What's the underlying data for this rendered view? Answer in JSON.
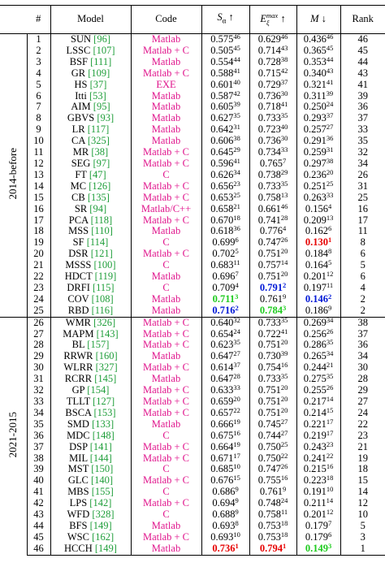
{
  "table": {
    "header": {
      "num": "#",
      "model": "Model",
      "code": "Code",
      "s": "S",
      "s_sub": "α",
      "s_arrow": "↑",
      "e": "E",
      "e_sub": "ξ",
      "e_sup": "max",
      "e_arrow": "↑",
      "m": "M",
      "m_arrow": "↓",
      "rank": "Rank"
    },
    "groups": [
      {
        "label": "2014-before",
        "rows": [
          {
            "num": "1",
            "model": "SUN",
            "ref": "[96]",
            "code": "Matlab",
            "s": "0.575",
            "s_rank": "46",
            "e": "0.629",
            "e_rank": "46",
            "m": "0.436",
            "m_rank": "46",
            "rank": "46"
          },
          {
            "num": "2",
            "model": "LSSC",
            "ref": "[107]",
            "code": "Matlab + C",
            "s": "0.505",
            "s_rank": "45",
            "e": "0.714",
            "e_rank": "43",
            "m": "0.365",
            "m_rank": "45",
            "rank": "45"
          },
          {
            "num": "3",
            "model": "BSF",
            "ref": "[111]",
            "code": "Matlab",
            "s": "0.554",
            "s_rank": "44",
            "e": "0.728",
            "e_rank": "38",
            "m": "0.353",
            "m_rank": "44",
            "rank": "44"
          },
          {
            "num": "4",
            "model": "GR",
            "ref": "[109]",
            "code": "Matlab + C",
            "s": "0.588",
            "s_rank": "41",
            "e": "0.715",
            "e_rank": "42",
            "m": "0.340",
            "m_rank": "43",
            "rank": "43"
          },
          {
            "num": "5",
            "model": "HS",
            "ref": "[37]",
            "code": "EXE",
            "s": "0.601",
            "s_rank": "40",
            "e": "0.729",
            "e_rank": "37",
            "m": "0.321",
            "m_rank": "41",
            "rank": "41"
          },
          {
            "num": "6",
            "model": "Itti",
            "ref": "[53]",
            "code": "Matlab",
            "s": "0.587",
            "s_rank": "42",
            "e": "0.736",
            "e_rank": "30",
            "m": "0.311",
            "m_rank": "39",
            "rank": "39"
          },
          {
            "num": "7",
            "model": "AIM",
            "ref": "[95]",
            "code": "Matlab",
            "s": "0.605",
            "s_rank": "39",
            "e": "0.718",
            "e_rank": "41",
            "m": "0.250",
            "m_rank": "24",
            "rank": "36"
          },
          {
            "num": "8",
            "model": "GBVS",
            "ref": "[93]",
            "code": "Matlab",
            "s": "0.627",
            "s_rank": "35",
            "e": "0.733",
            "e_rank": "35",
            "m": "0.293",
            "m_rank": "37",
            "rank": "37"
          },
          {
            "num": "9",
            "model": "LR",
            "ref": "[117]",
            "code": "Matlab",
            "s": "0.642",
            "s_rank": "31",
            "e": "0.723",
            "e_rank": "40",
            "m": "0.257",
            "m_rank": "27",
            "rank": "33"
          },
          {
            "num": "10",
            "model": "CA",
            "ref": "[325]",
            "code": "Matlab",
            "s": "0.606",
            "s_rank": "38",
            "e": "0.736",
            "e_rank": "30",
            "m": "0.291",
            "m_rank": "36",
            "rank": "35"
          },
          {
            "num": "11",
            "model": "MR",
            "ref": "[38]",
            "code": "Matlab + C",
            "s": "0.645",
            "s_rank": "29",
            "e": "0.734",
            "e_rank": "33",
            "m": "0.259",
            "m_rank": "31",
            "rank": "32"
          },
          {
            "num": "12",
            "model": "SEG",
            "ref": "[97]",
            "code": "Matlab + C",
            "s": "0.596",
            "s_rank": "41",
            "e": "0.765",
            "e_rank": "7",
            "m": "0.297",
            "m_rank": "38",
            "rank": "34"
          },
          {
            "num": "13",
            "model": "FT",
            "ref": "[47]",
            "code": "C",
            "s": "0.626",
            "s_rank": "34",
            "e": "0.738",
            "e_rank": "29",
            "m": "0.236",
            "m_rank": "20",
            "rank": "26"
          },
          {
            "num": "14",
            "model": "MC",
            "ref": "[126]",
            "code": "Matlab + C",
            "s": "0.656",
            "s_rank": "23",
            "e": "0.733",
            "e_rank": "35",
            "m": "0.251",
            "m_rank": "25",
            "rank": "31"
          },
          {
            "num": "15",
            "model": "CB",
            "ref": "[135]",
            "code": "Matlab + C",
            "s": "0.653",
            "s_rank": "25",
            "e": "0.758",
            "e_rank": "13",
            "m": "0.263",
            "m_rank": "33",
            "rank": "25"
          },
          {
            "num": "16",
            "model": "SR",
            "ref": "[94]",
            "code": "Matlab/C++",
            "s": "0.658",
            "s_rank": "21",
            "e": "0.661",
            "e_rank": "46",
            "m": "0.156",
            "m_rank": "4",
            "rank": "16"
          },
          {
            "num": "17",
            "model": "PCA",
            "ref": "[118]",
            "code": "Matlab + C",
            "s": "0.670",
            "s_rank": "18",
            "e": "0.741",
            "e_rank": "28",
            "m": "0.209",
            "m_rank": "13",
            "rank": "17"
          },
          {
            "num": "18",
            "model": "MSS",
            "ref": "[110]",
            "code": "Matlab",
            "s": "0.618",
            "s_rank": "36",
            "e": "0.776",
            "e_rank": "4",
            "m": "0.162",
            "m_rank": "6",
            "rank": "11"
          },
          {
            "num": "19",
            "model": "SF",
            "ref": "[114]",
            "code": "C",
            "s": "0.699",
            "s_rank": "6",
            "e": "0.747",
            "e_rank": "26",
            "m": "0.130",
            "m_rank": "1",
            "m_color": "red",
            "rank": "8"
          },
          {
            "num": "20",
            "model": "DSR",
            "ref": "[121]",
            "code": "Matlab + C",
            "s": "0.702",
            "s_rank": "5",
            "e": "0.751",
            "e_rank": "20",
            "m": "0.184",
            "m_rank": "8",
            "rank": "6"
          },
          {
            "num": "21",
            "model": "MSSS",
            "ref": "[100]",
            "code": "C",
            "s": "0.683",
            "s_rank": "11",
            "e": "0.757",
            "e_rank": "14",
            "m": "0.164",
            "m_rank": "5",
            "rank": "5"
          },
          {
            "num": "22",
            "model": "HDCT",
            "ref": "[119]",
            "code": "Matlab",
            "s": "0.696",
            "s_rank": "7",
            "e": "0.751",
            "e_rank": "20",
            "m": "0.201",
            "m_rank": "12",
            "rank": "6"
          },
          {
            "num": "23",
            "model": "DRFI",
            "ref": "[115]",
            "code": "C",
            "s": "0.709",
            "s_rank": "4",
            "e": "0.791",
            "e_rank": "2",
            "e_color": "blue",
            "m": "0.197",
            "m_rank": "11",
            "rank": "4"
          },
          {
            "num": "24",
            "model": "COV",
            "ref": "[108]",
            "code": "Matlab",
            "s": "0.711",
            "s_rank": "3",
            "s_color": "green",
            "e": "0.761",
            "e_rank": "9",
            "m": "0.146",
            "m_rank": "2",
            "m_color": "blue",
            "rank": "2"
          },
          {
            "num": "25",
            "model": "RBD",
            "ref": "[116]",
            "code": "Matlab",
            "s": "0.716",
            "s_rank": "2",
            "s_color": "blue",
            "e": "0.784",
            "e_rank": "3",
            "e_color": "green",
            "m": "0.186",
            "m_rank": "9",
            "rank": "2"
          }
        ]
      },
      {
        "label": "2021-2015",
        "rows": [
          {
            "num": "26",
            "model": "WMR",
            "ref": "[326]",
            "code": "Matlab + C",
            "s": "0.640",
            "s_rank": "32",
            "e": "0.733",
            "e_rank": "35",
            "m": "0.269",
            "m_rank": "34",
            "rank": "38"
          },
          {
            "num": "27",
            "model": "MAPM",
            "ref": "[143]",
            "code": "Matlab + C",
            "s": "0.654",
            "s_rank": "24",
            "e": "0.722",
            "e_rank": "41",
            "m": "0.256",
            "m_rank": "26",
            "rank": "37"
          },
          {
            "num": "28",
            "model": "BL",
            "ref": "[157]",
            "code": "Matlab + C",
            "s": "0.623",
            "s_rank": "35",
            "e": "0.751",
            "e_rank": "20",
            "m": "0.286",
            "m_rank": "35",
            "rank": "36"
          },
          {
            "num": "29",
            "model": "RRWR",
            "ref": "[160]",
            "code": "Matlab",
            "s": "0.647",
            "s_rank": "27",
            "e": "0.730",
            "e_rank": "39",
            "m": "0.265",
            "m_rank": "34",
            "rank": "34"
          },
          {
            "num": "30",
            "model": "WLRR",
            "ref": "[327]",
            "code": "Matlab + C",
            "s": "0.614",
            "s_rank": "37",
            "e": "0.754",
            "e_rank": "16",
            "m": "0.244",
            "m_rank": "21",
            "rank": "30"
          },
          {
            "num": "31",
            "model": "RCRR",
            "ref": "[145]",
            "code": "Matlab",
            "s": "0.647",
            "s_rank": "28",
            "e": "0.733",
            "e_rank": "35",
            "m": "0.275",
            "m_rank": "35",
            "rank": "28"
          },
          {
            "num": "32",
            "model": "GP",
            "ref": "[154]",
            "code": "Matlab + C",
            "s": "0.633",
            "s_rank": "33",
            "e": "0.751",
            "e_rank": "20",
            "m": "0.255",
            "m_rank": "26",
            "rank": "29"
          },
          {
            "num": "33",
            "model": "TLLT",
            "ref": "[127]",
            "code": "Matlab + C",
            "s": "0.659",
            "s_rank": "20",
            "e": "0.751",
            "e_rank": "20",
            "m": "0.217",
            "m_rank": "14",
            "rank": "27"
          },
          {
            "num": "34",
            "model": "BSCA",
            "ref": "[153]",
            "code": "Matlab + C",
            "s": "0.657",
            "s_rank": "22",
            "e": "0.751",
            "e_rank": "20",
            "m": "0.214",
            "m_rank": "15",
            "rank": "24"
          },
          {
            "num": "35",
            "model": "SMD",
            "ref": "[133]",
            "code": "Matlab",
            "s": "0.666",
            "s_rank": "19",
            "e": "0.745",
            "e_rank": "27",
            "m": "0.221",
            "m_rank": "17",
            "rank": "22"
          },
          {
            "num": "36",
            "model": "MDC",
            "ref": "[148]",
            "code": "C",
            "s": "0.675",
            "s_rank": "16",
            "e": "0.744",
            "e_rank": "27",
            "m": "0.219",
            "m_rank": "17",
            "rank": "23"
          },
          {
            "num": "37",
            "model": "DSP",
            "ref": "[141]",
            "code": "Matlab + C",
            "s": "0.664",
            "s_rank": "19",
            "e": "0.750",
            "e_rank": "25",
            "m": "0.243",
            "m_rank": "23",
            "rank": "21"
          },
          {
            "num": "38",
            "model": "MIL",
            "ref": "[144]",
            "code": "Matlab + C",
            "s": "0.671",
            "s_rank": "17",
            "e": "0.750",
            "e_rank": "22",
            "m": "0.241",
            "m_rank": "22",
            "rank": "19"
          },
          {
            "num": "39",
            "model": "MST",
            "ref": "[150]",
            "code": "C",
            "s": "0.685",
            "s_rank": "10",
            "e": "0.747",
            "e_rank": "26",
            "m": "0.215",
            "m_rank": "16",
            "rank": "18"
          },
          {
            "num": "40",
            "model": "GLC",
            "ref": "[140]",
            "code": "Matlab + C",
            "s": "0.676",
            "s_rank": "15",
            "e": "0.755",
            "e_rank": "16",
            "m": "0.223",
            "m_rank": "18",
            "rank": "15"
          },
          {
            "num": "41",
            "model": "MBS",
            "ref": "[155]",
            "code": "C",
            "s": "0.686",
            "s_rank": "9",
            "e": "0.761",
            "e_rank": "9",
            "m": "0.191",
            "m_rank": "10",
            "rank": "14"
          },
          {
            "num": "42",
            "model": "LPS",
            "ref": "[142]",
            "code": "Matlab + C",
            "s": "0.694",
            "s_rank": "9",
            "e": "0.748",
            "e_rank": "24",
            "m": "0.211",
            "m_rank": "14",
            "rank": "12"
          },
          {
            "num": "43",
            "model": "WFD",
            "ref": "[328]",
            "code": "C",
            "s": "0.688",
            "s_rank": "9",
            "e": "0.758",
            "e_rank": "11",
            "m": "0.201",
            "m_rank": "12",
            "rank": "10"
          },
          {
            "num": "44",
            "model": "BFS",
            "ref": "[149]",
            "code": "Matlab",
            "s": "0.693",
            "s_rank": "8",
            "e": "0.753",
            "e_rank": "18",
            "m": "0.179",
            "m_rank": "7",
            "rank": "5"
          },
          {
            "num": "45",
            "model": "WSC",
            "ref": "[162]",
            "code": "Matlab + C",
            "s": "0.693",
            "s_rank": "10",
            "e": "0.753",
            "e_rank": "18",
            "m": "0.179",
            "m_rank": "6",
            "rank": "3"
          },
          {
            "num": "46",
            "model": "HCCH",
            "ref": "[149]",
            "code": "Matlab",
            "s": "0.736",
            "s_rank": "1",
            "s_color": "red",
            "e": "0.794",
            "e_rank": "1",
            "e_color": "red",
            "m": "0.149",
            "m_rank": "3",
            "m_color": "green",
            "rank": "1"
          }
        ]
      }
    ]
  }
}
